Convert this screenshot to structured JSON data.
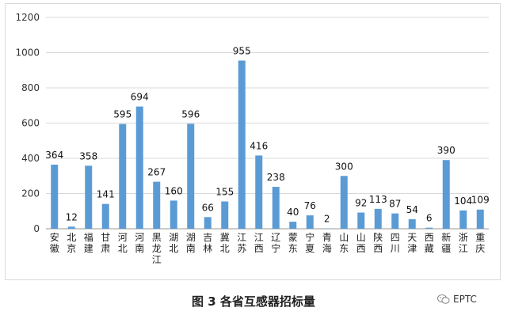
{
  "chart_data": {
    "type": "bar",
    "title": "",
    "xlabel": "",
    "ylabel": "",
    "ylim": [
      0,
      1200
    ],
    "yticks": [
      0,
      200,
      400,
      600,
      800,
      1000,
      1200
    ],
    "grid": true,
    "legend": "none",
    "bar_color": "#5b9bd5",
    "categories": [
      "安徽",
      "北京",
      "福建",
      "甘肃",
      "河北",
      "河南",
      "黑龙江",
      "湖北",
      "湖南",
      "吉林",
      "冀北",
      "江苏",
      "江西",
      "辽宁",
      "蒙东",
      "宁夏",
      "青海",
      "山东",
      "山西",
      "陕西",
      "四川",
      "天津",
      "西藏",
      "新疆",
      "浙江",
      "重庆"
    ],
    "values": [
      364,
      12,
      358,
      141,
      595,
      694,
      267,
      160,
      596,
      66,
      155,
      955,
      416,
      238,
      40,
      76,
      2,
      300,
      92,
      113,
      87,
      54,
      6,
      390,
      104,
      109
    ]
  },
  "caption": "图 3 各省互感器招标量",
  "watermark": {
    "text": "EPTC",
    "icon": "wechat-icon"
  }
}
